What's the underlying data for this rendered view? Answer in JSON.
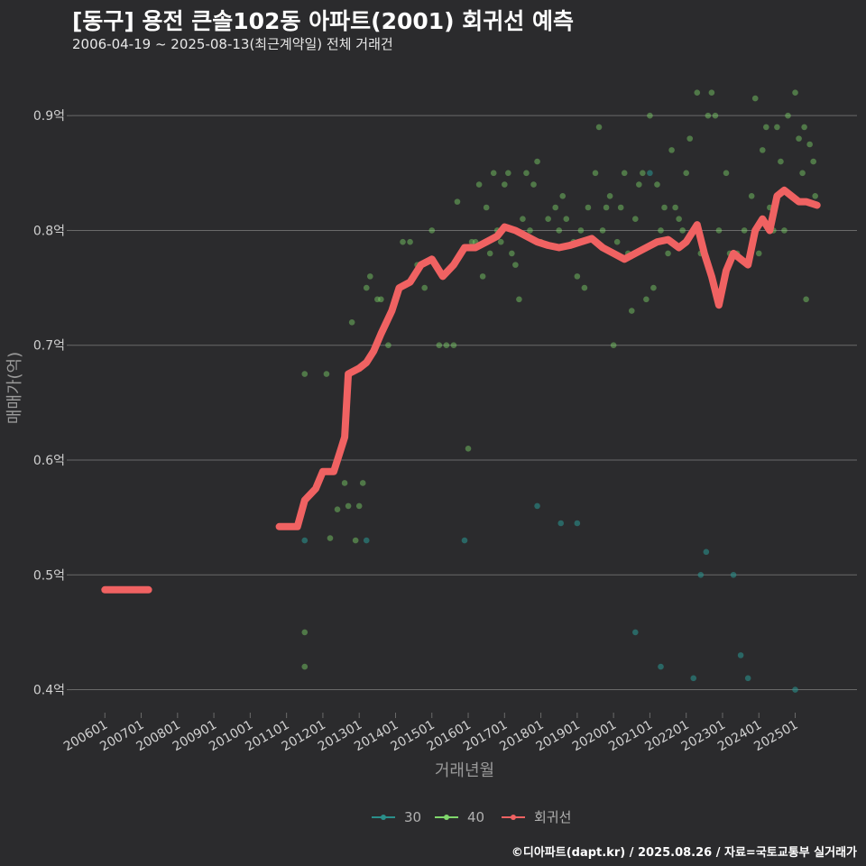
{
  "header": {
    "title": "[동구] 용전 큰솔102동 아파트(2001) 회귀선 예측",
    "subtitle": "2006-04-19 ~ 2025-08-13(최근계약일) 전체 거래건",
    "caption": "©디아파트(dapt.kr) / 2025.08.26 / 자료=국토교통부 실거래가"
  },
  "colors": {
    "background": "#2b2b2d",
    "grid": "#6a6a6a",
    "series_30": "#2a8f8a",
    "series_40": "#7fd66b",
    "regression": "#f06262"
  },
  "chart_data": {
    "type": "scatter",
    "xlabel": "거래년월",
    "ylabel": "매매가(억)",
    "x_tick_labels": [
      "200601",
      "200701",
      "200801",
      "200901",
      "201001",
      "201101",
      "201201",
      "201301",
      "201401",
      "201501",
      "201601",
      "201701",
      "201801",
      "201901",
      "202001",
      "202101",
      "202201",
      "202301",
      "202401",
      "202501"
    ],
    "y_ticks": [
      0.4,
      0.5,
      0.6,
      0.7,
      0.8,
      0.9
    ],
    "y_tick_labels": [
      "0.4억",
      "0.5억",
      "0.6억",
      "0.7억",
      "0.8억",
      "0.9억"
    ],
    "ylim": [
      0.38,
      0.93
    ],
    "xlim": [
      2005.1,
      2026.7
    ],
    "grid": true,
    "legend": "bottom",
    "legend_entries": [
      "30",
      "40",
      "회귀선"
    ],
    "series": [
      {
        "name": "30",
        "points": [
          [
            2017.9,
            0.56
          ],
          [
            2018.55,
            0.545
          ],
          [
            2019.0,
            0.545
          ],
          [
            2015.9,
            0.53
          ],
          [
            2011.5,
            0.53
          ],
          [
            2013.2,
            0.53
          ],
          [
            2020.6,
            0.45
          ],
          [
            2021.3,
            0.42
          ],
          [
            2022.2,
            0.41
          ],
          [
            2022.4,
            0.5
          ],
          [
            2022.55,
            0.52
          ],
          [
            2023.3,
            0.5
          ],
          [
            2023.5,
            0.43
          ],
          [
            2023.7,
            0.41
          ],
          [
            2025.0,
            0.4
          ],
          [
            2021.0,
            0.85
          ]
        ]
      },
      {
        "name": "40",
        "points": [
          [
            2011.5,
            0.675
          ],
          [
            2011.5,
            0.45
          ],
          [
            2011.5,
            0.42
          ],
          [
            2012.1,
            0.675
          ],
          [
            2012.2,
            0.532
          ],
          [
            2012.4,
            0.557
          ],
          [
            2012.6,
            0.58
          ],
          [
            2012.7,
            0.56
          ],
          [
            2012.8,
            0.72
          ],
          [
            2012.9,
            0.53
          ],
          [
            2013.0,
            0.56
          ],
          [
            2013.1,
            0.58
          ],
          [
            2013.2,
            0.75
          ],
          [
            2013.3,
            0.76
          ],
          [
            2013.5,
            0.74
          ],
          [
            2013.6,
            0.74
          ],
          [
            2013.8,
            0.7
          ],
          [
            2014.2,
            0.79
          ],
          [
            2014.4,
            0.79
          ],
          [
            2014.6,
            0.77
          ],
          [
            2014.8,
            0.75
          ],
          [
            2015.0,
            0.8
          ],
          [
            2015.2,
            0.7
          ],
          [
            2015.4,
            0.7
          ],
          [
            2015.6,
            0.7
          ],
          [
            2015.7,
            0.825
          ],
          [
            2015.8,
            0.78
          ],
          [
            2016.0,
            0.61
          ],
          [
            2016.1,
            0.79
          ],
          [
            2016.2,
            0.79
          ],
          [
            2016.3,
            0.84
          ],
          [
            2016.4,
            0.76
          ],
          [
            2016.5,
            0.82
          ],
          [
            2016.6,
            0.78
          ],
          [
            2016.7,
            0.85
          ],
          [
            2016.8,
            0.8
          ],
          [
            2016.9,
            0.79
          ],
          [
            2017.0,
            0.84
          ],
          [
            2017.1,
            0.85
          ],
          [
            2017.2,
            0.78
          ],
          [
            2017.3,
            0.77
          ],
          [
            2017.4,
            0.74
          ],
          [
            2017.5,
            0.81
          ],
          [
            2017.6,
            0.85
          ],
          [
            2017.7,
            0.8
          ],
          [
            2017.8,
            0.84
          ],
          [
            2017.9,
            0.86
          ],
          [
            2018.0,
            0.79
          ],
          [
            2018.2,
            0.81
          ],
          [
            2018.4,
            0.82
          ],
          [
            2018.5,
            0.8
          ],
          [
            2018.6,
            0.83
          ],
          [
            2018.7,
            0.81
          ],
          [
            2018.9,
            0.79
          ],
          [
            2019.0,
            0.76
          ],
          [
            2019.1,
            0.8
          ],
          [
            2019.2,
            0.75
          ],
          [
            2019.3,
            0.82
          ],
          [
            2019.5,
            0.85
          ],
          [
            2019.6,
            0.89
          ],
          [
            2019.7,
            0.8
          ],
          [
            2019.8,
            0.82
          ],
          [
            2019.9,
            0.83
          ],
          [
            2020.0,
            0.7
          ],
          [
            2020.1,
            0.79
          ],
          [
            2020.2,
            0.82
          ],
          [
            2020.3,
            0.85
          ],
          [
            2020.4,
            0.78
          ],
          [
            2020.5,
            0.73
          ],
          [
            2020.6,
            0.81
          ],
          [
            2020.7,
            0.84
          ],
          [
            2020.8,
            0.85
          ],
          [
            2020.9,
            0.74
          ],
          [
            2021.0,
            0.9
          ],
          [
            2021.1,
            0.75
          ],
          [
            2021.2,
            0.84
          ],
          [
            2021.3,
            0.8
          ],
          [
            2021.4,
            0.82
          ],
          [
            2021.5,
            0.78
          ],
          [
            2021.6,
            0.87
          ],
          [
            2021.7,
            0.82
          ],
          [
            2021.8,
            0.81
          ],
          [
            2021.9,
            0.8
          ],
          [
            2022.0,
            0.85
          ],
          [
            2022.1,
            0.88
          ],
          [
            2022.2,
            0.8
          ],
          [
            2022.3,
            0.92
          ],
          [
            2022.4,
            0.78
          ],
          [
            2022.6,
            0.9
          ],
          [
            2022.7,
            0.92
          ],
          [
            2022.8,
            0.9
          ],
          [
            2022.9,
            0.8
          ],
          [
            2023.1,
            0.85
          ],
          [
            2023.2,
            0.78
          ],
          [
            2023.4,
            0.78
          ],
          [
            2023.6,
            0.8
          ],
          [
            2023.8,
            0.83
          ],
          [
            2023.9,
            0.915
          ],
          [
            2024.0,
            0.78
          ],
          [
            2024.1,
            0.87
          ],
          [
            2024.2,
            0.89
          ],
          [
            2024.3,
            0.82
          ],
          [
            2024.4,
            0.8
          ],
          [
            2024.5,
            0.89
          ],
          [
            2024.6,
            0.86
          ],
          [
            2024.7,
            0.8
          ],
          [
            2024.8,
            0.9
          ],
          [
            2024.9,
            0.83
          ],
          [
            2025.0,
            0.92
          ],
          [
            2025.1,
            0.88
          ],
          [
            2025.2,
            0.85
          ],
          [
            2025.25,
            0.89
          ],
          [
            2025.3,
            0.74
          ],
          [
            2025.4,
            0.875
          ],
          [
            2025.5,
            0.86
          ],
          [
            2025.55,
            0.83
          ]
        ]
      },
      {
        "name": "회귀선",
        "points": [
          [
            2006.0,
            0.487
          ],
          [
            2007.2,
            0.487
          ],
          [
            2010.8,
            0.542
          ],
          [
            2011.3,
            0.542
          ],
          [
            2011.5,
            0.565
          ],
          [
            2011.8,
            0.575
          ],
          [
            2012.0,
            0.59
          ],
          [
            2012.3,
            0.59
          ],
          [
            2012.5,
            0.61
          ],
          [
            2012.6,
            0.62
          ],
          [
            2012.7,
            0.675
          ],
          [
            2013.0,
            0.68
          ],
          [
            2013.2,
            0.685
          ],
          [
            2013.4,
            0.695
          ],
          [
            2013.6,
            0.71
          ],
          [
            2013.9,
            0.73
          ],
          [
            2014.1,
            0.75
          ],
          [
            2014.4,
            0.755
          ],
          [
            2014.7,
            0.77
          ],
          [
            2015.0,
            0.775
          ],
          [
            2015.3,
            0.76
          ],
          [
            2015.6,
            0.77
          ],
          [
            2015.9,
            0.785
          ],
          [
            2016.2,
            0.785
          ],
          [
            2016.5,
            0.79
          ],
          [
            2016.8,
            0.795
          ],
          [
            2017.0,
            0.803
          ],
          [
            2017.3,
            0.8
          ],
          [
            2017.6,
            0.795
          ],
          [
            2017.9,
            0.79
          ],
          [
            2018.2,
            0.787
          ],
          [
            2018.5,
            0.785
          ],
          [
            2018.8,
            0.787
          ],
          [
            2019.1,
            0.79
          ],
          [
            2019.4,
            0.793
          ],
          [
            2019.7,
            0.785
          ],
          [
            2020.0,
            0.78
          ],
          [
            2020.3,
            0.775
          ],
          [
            2020.6,
            0.78
          ],
          [
            2020.9,
            0.785
          ],
          [
            2021.2,
            0.79
          ],
          [
            2021.5,
            0.792
          ],
          [
            2021.8,
            0.785
          ],
          [
            2022.0,
            0.79
          ],
          [
            2022.3,
            0.805
          ],
          [
            2022.5,
            0.78
          ],
          [
            2022.7,
            0.76
          ],
          [
            2022.9,
            0.735
          ],
          [
            2023.1,
            0.765
          ],
          [
            2023.3,
            0.78
          ],
          [
            2023.5,
            0.775
          ],
          [
            2023.7,
            0.77
          ],
          [
            2023.9,
            0.8
          ],
          [
            2024.1,
            0.81
          ],
          [
            2024.3,
            0.8
          ],
          [
            2024.5,
            0.83
          ],
          [
            2024.7,
            0.835
          ],
          [
            2024.9,
            0.83
          ],
          [
            2025.1,
            0.825
          ],
          [
            2025.3,
            0.825
          ],
          [
            2025.6,
            0.822
          ]
        ]
      }
    ]
  }
}
